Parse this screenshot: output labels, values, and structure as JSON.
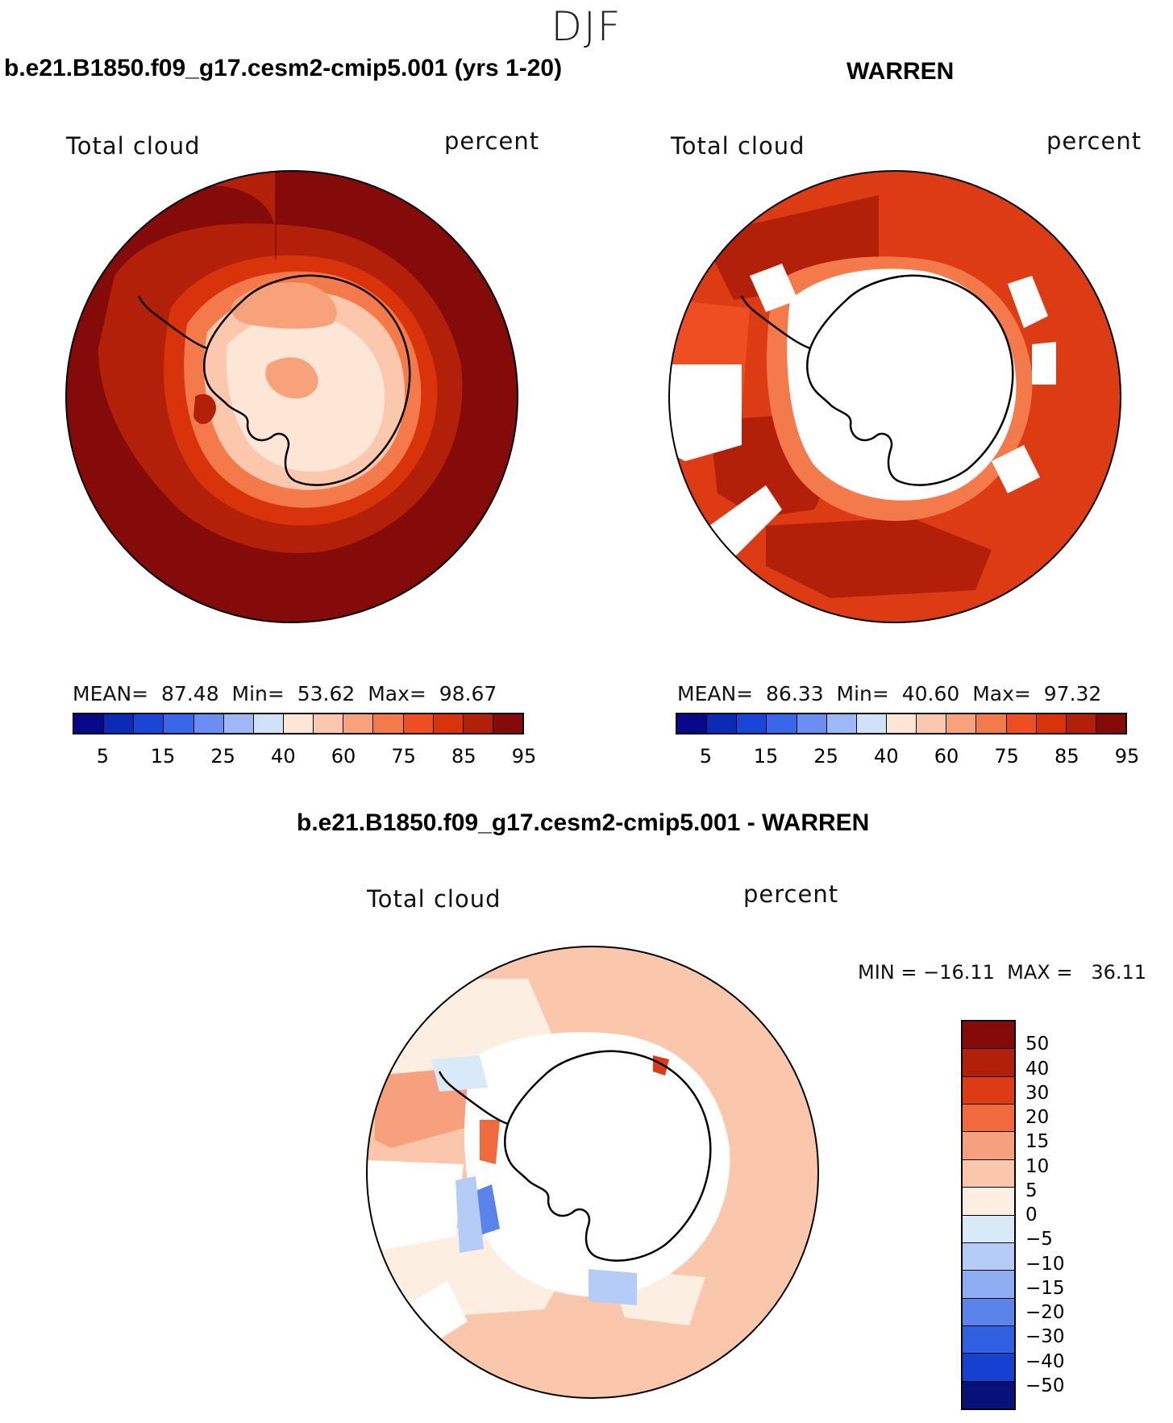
{
  "page_title": "DJF",
  "panels": [
    {
      "title": "b.e21.B1850.f09_g17.cesm2-cmip5.001 (yrs 1-20)",
      "left_label": "Total cloud",
      "right_label": "percent",
      "stats": {
        "mean_label": "MEAN=",
        "mean": "87.48",
        "min_label": "Min=",
        "min": "53.62",
        "max_label": "Max=",
        "max": "98.67"
      }
    },
    {
      "title": "WARREN",
      "left_label": "Total cloud",
      "right_label": "percent",
      "stats": {
        "mean_label": "MEAN=",
        "mean": "86.33",
        "min_label": "Min=",
        "min": "40.60",
        "max_label": "Max=",
        "max": "97.32"
      }
    }
  ],
  "abs_colorbar": {
    "colors": [
      "#08088a",
      "#0a2bb8",
      "#1a46d8",
      "#3a66ec",
      "#6a8ef4",
      "#9db7f7",
      "#cfe2f8",
      "#fde6d6",
      "#fbc8ad",
      "#f8a27c",
      "#f47a4c",
      "#ee4e22",
      "#d8330b",
      "#b3200a",
      "#850a0a"
    ],
    "ticks": [
      "5",
      "15",
      "25",
      "40",
      "60",
      "75",
      "85",
      "95"
    ]
  },
  "diff_panel": {
    "title": "b.e21.B1850.f09_g17.cesm2-cmip5.001 - WARREN",
    "left_label": "Total cloud",
    "right_label": "percent",
    "minmax": "MIN = −16.11  MAX =   36.11"
  },
  "diff_colorbar": {
    "colors": [
      "#850a0a",
      "#b3200a",
      "#dd3b13",
      "#f06a3e",
      "#f6a07e",
      "#fac7ad",
      "#fdeee2",
      "#d8e9f8",
      "#b5ccf6",
      "#8eacf2",
      "#5b84ea",
      "#3060e2",
      "#1540d0",
      "#08107a"
    ],
    "ticks": [
      "50",
      "40",
      "30",
      "20",
      "15",
      "10",
      "5",
      "0",
      "−5",
      "−10",
      "−15",
      "−20",
      "−30",
      "−40",
      "−50"
    ]
  },
  "chart_data": [
    {
      "type": "heatmap",
      "title": "b.e21.B1850.f09_g17.cesm2-cmip5.001 (yrs 1-20)",
      "variable": "Total cloud",
      "units": "percent",
      "projection": "south polar stereographic",
      "mean": 87.48,
      "min": 53.62,
      "max": 98.67,
      "levels": [
        5,
        10,
        15,
        20,
        25,
        30,
        40,
        50,
        60,
        70,
        75,
        80,
        85,
        90,
        95
      ]
    },
    {
      "type": "heatmap",
      "title": "WARREN",
      "variable": "Total cloud",
      "units": "percent",
      "projection": "south polar stereographic",
      "mean": 86.33,
      "min": 40.6,
      "max": 97.32,
      "levels": [
        5,
        10,
        15,
        20,
        25,
        30,
        40,
        50,
        60,
        70,
        75,
        80,
        85,
        90,
        95
      ]
    },
    {
      "type": "heatmap",
      "title": "b.e21.B1850.f09_g17.cesm2-cmip5.001 - WARREN",
      "variable": "Total cloud",
      "units": "percent",
      "projection": "south polar stereographic",
      "min": -16.11,
      "max": 36.11,
      "levels": [
        -50,
        -40,
        -30,
        -20,
        -15,
        -10,
        -5,
        0,
        5,
        10,
        15,
        20,
        30,
        40,
        50
      ]
    }
  ]
}
